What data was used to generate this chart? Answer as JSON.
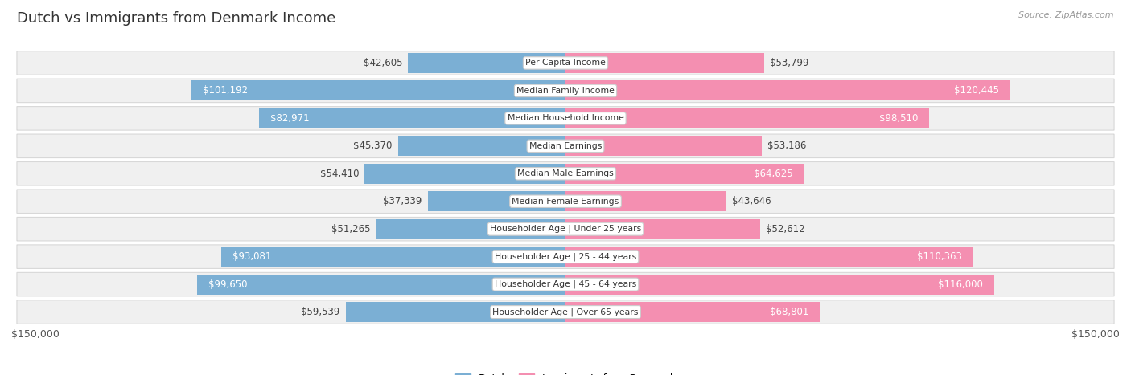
{
  "title": "Dutch vs Immigrants from Denmark Income",
  "source": "Source: ZipAtlas.com",
  "categories": [
    "Per Capita Income",
    "Median Family Income",
    "Median Household Income",
    "Median Earnings",
    "Median Male Earnings",
    "Median Female Earnings",
    "Householder Age | Under 25 years",
    "Householder Age | 25 - 44 years",
    "Householder Age | 45 - 64 years",
    "Householder Age | Over 65 years"
  ],
  "dutch_values": [
    42605,
    101192,
    82971,
    45370,
    54410,
    37339,
    51265,
    93081,
    99650,
    59539
  ],
  "denmark_values": [
    53799,
    120445,
    98510,
    53186,
    64625,
    43646,
    52612,
    110363,
    116000,
    68801
  ],
  "dutch_labels": [
    "$42,605",
    "$101,192",
    "$82,971",
    "$45,370",
    "$54,410",
    "$37,339",
    "$51,265",
    "$93,081",
    "$99,650",
    "$59,539"
  ],
  "denmark_labels": [
    "$53,799",
    "$120,445",
    "$98,510",
    "$53,186",
    "$64,625",
    "$43,646",
    "$52,612",
    "$110,363",
    "$116,000",
    "$68,801"
  ],
  "dutch_color": "#7bafd4",
  "denmark_color": "#f48fb1",
  "max_value": 150000,
  "bar_height": 0.72,
  "background_color": "#ffffff",
  "row_bg_color": "#f0f0f0",
  "row_border_color": "#d8d8d8",
  "title_fontsize": 13,
  "label_fontsize": 8.5,
  "legend_dutch": "Dutch",
  "legend_denmark": "Immigrants from Denmark",
  "axis_label_left": "$150,000",
  "axis_label_right": "$150,000",
  "dutch_threshold": 62000,
  "denmark_threshold": 62000
}
